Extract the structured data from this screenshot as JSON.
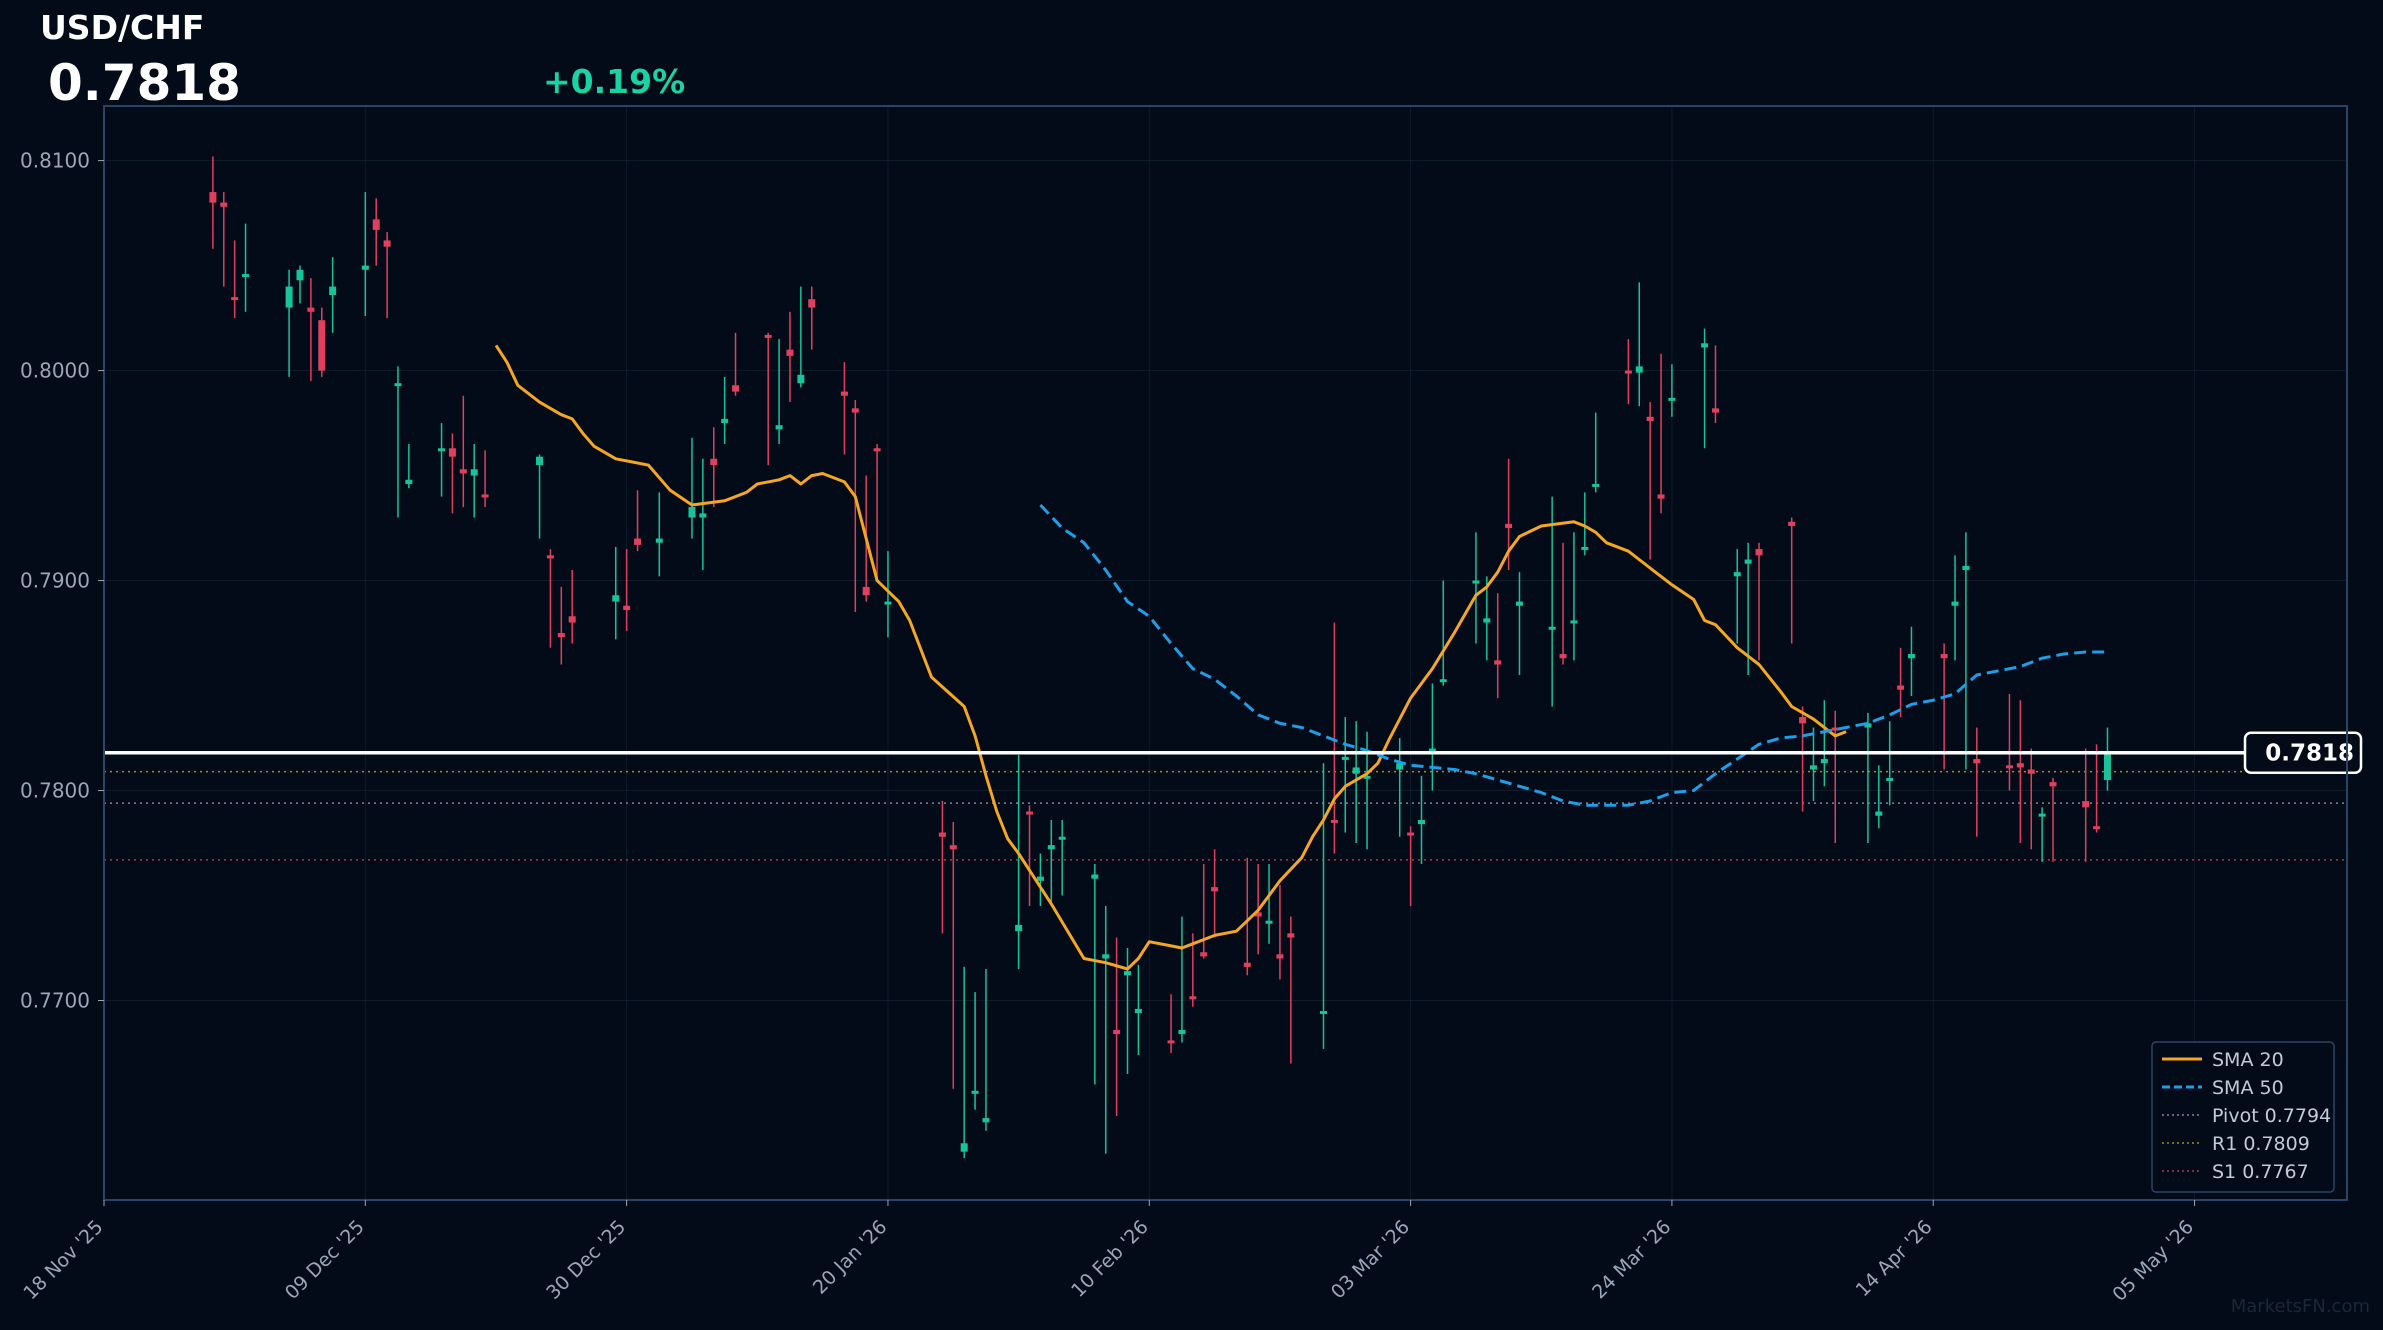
{
  "header": {
    "symbol": "USD/CHF",
    "price": "0.7818",
    "change": "+0.19%"
  },
  "watermark": "MarketsFN.com",
  "colors": {
    "background": "#020b17",
    "bull": "#19c39a",
    "bear": "#e0405e",
    "sma20": "#f5a623",
    "sma50": "#1e9ee8",
    "pivot": "#6f8aa8",
    "r1": "#a88a1e",
    "s1": "#b03a3a",
    "last_price": "#ffffff",
    "change_positive": "#19d3a2"
  },
  "chart_data": {
    "type": "candlestick",
    "ylim": [
      0.7605,
      0.8126
    ],
    "yticks": [
      "0.7700",
      "0.7800",
      "0.7900",
      "0.8000",
      "0.8100"
    ],
    "xlim": [
      0,
      103
    ],
    "xticks": [
      {
        "label": "18 Nov '25",
        "index": 0
      },
      {
        "label": "09 Dec '25",
        "index": 12
      },
      {
        "label": "30 Dec '25",
        "index": 24
      },
      {
        "label": "20 Jan '26",
        "index": 36
      },
      {
        "label": "10 Feb '26",
        "index": 48
      },
      {
        "label": "03 Mar '26",
        "index": 60
      },
      {
        "label": "24 Mar '26",
        "index": 72
      },
      {
        "label": "14 Apr '26",
        "index": 84
      },
      {
        "label": "05 May '26",
        "index": 96
      }
    ],
    "candles": [
      [
        5,
        0.8085,
        0.8102,
        0.8058,
        0.808
      ],
      [
        5.5,
        0.808,
        0.8085,
        0.804,
        0.8078
      ],
      [
        6,
        0.8035,
        0.8062,
        0.8025,
        0.8034
      ],
      [
        6.5,
        0.8045,
        0.807,
        0.8028,
        0.8046
      ],
      [
        8.5,
        0.803,
        0.8048,
        0.7997,
        0.804
      ],
      [
        9,
        0.8043,
        0.805,
        0.8032,
        0.8048
      ],
      [
        9.5,
        0.803,
        0.8044,
        0.7995,
        0.8028
      ],
      [
        10,
        0.8024,
        0.803,
        0.7997,
        0.8
      ],
      [
        10.5,
        0.8036,
        0.8054,
        0.8018,
        0.804
      ],
      [
        12,
        0.8048,
        0.8085,
        0.8026,
        0.805
      ],
      [
        12.5,
        0.8072,
        0.8082,
        0.805,
        0.8067
      ],
      [
        13,
        0.8062,
        0.8066,
        0.8025,
        0.8059
      ],
      [
        13.5,
        0.7994,
        0.8002,
        0.793,
        0.7994
      ],
      [
        14,
        0.7946,
        0.7965,
        0.7944,
        0.7948
      ],
      [
        15.5,
        0.7962,
        0.7975,
        0.794,
        0.7963
      ],
      [
        16,
        0.7963,
        0.797,
        0.7932,
        0.7959
      ],
      [
        16.5,
        0.7953,
        0.7988,
        0.7935,
        0.7951
      ],
      [
        17,
        0.795,
        0.7965,
        0.793,
        0.7953
      ],
      [
        17.5,
        0.7941,
        0.7962,
        0.7935,
        0.794
      ],
      [
        20,
        0.7955,
        0.796,
        0.792,
        0.7959
      ],
      [
        20.5,
        0.7912,
        0.7915,
        0.7868,
        0.7911
      ],
      [
        21,
        0.7875,
        0.7897,
        0.786,
        0.7873
      ],
      [
        21.5,
        0.7883,
        0.7905,
        0.787,
        0.788
      ],
      [
        23.5,
        0.789,
        0.7916,
        0.7872,
        0.7893
      ],
      [
        24,
        0.7888,
        0.7915,
        0.7876,
        0.7886
      ],
      [
        24.5,
        0.792,
        0.7943,
        0.7914,
        0.7917
      ],
      [
        25.5,
        0.7918,
        0.7942,
        0.7902,
        0.792
      ],
      [
        27,
        0.793,
        0.7968,
        0.792,
        0.7935
      ],
      [
        27.5,
        0.793,
        0.7958,
        0.7905,
        0.7932
      ],
      [
        28,
        0.7958,
        0.7973,
        0.7935,
        0.7955
      ],
      [
        28.5,
        0.7975,
        0.7997,
        0.7965,
        0.7977
      ],
      [
        29,
        0.7993,
        0.8018,
        0.7988,
        0.799
      ],
      [
        30.5,
        0.8017,
        0.8018,
        0.7955,
        0.8016
      ],
      [
        31,
        0.7972,
        0.8015,
        0.7965,
        0.7974
      ],
      [
        31.5,
        0.801,
        0.8028,
        0.7985,
        0.8007
      ],
      [
        32,
        0.7994,
        0.804,
        0.7992,
        0.7998
      ],
      [
        32.5,
        0.8034,
        0.804,
        0.801,
        0.803
      ],
      [
        34,
        0.799,
        0.8004,
        0.796,
        0.7988
      ],
      [
        34.5,
        0.7982,
        0.7986,
        0.7885,
        0.798
      ],
      [
        35,
        0.7897,
        0.795,
        0.789,
        0.7893
      ],
      [
        35.5,
        0.7963,
        0.7965,
        0.79,
        0.7962
      ],
      [
        36,
        0.789,
        0.7914,
        0.7873,
        0.789
      ],
      [
        38.5,
        0.778,
        0.7795,
        0.7732,
        0.7778
      ],
      [
        39,
        0.7774,
        0.7785,
        0.7658,
        0.7772
      ],
      [
        39.5,
        0.7628,
        0.7716,
        0.7625,
        0.7632
      ],
      [
        40,
        0.7656,
        0.7704,
        0.7648,
        0.7657
      ],
      [
        40.5,
        0.7642,
        0.7715,
        0.7638,
        0.7644
      ],
      [
        42,
        0.7733,
        0.7817,
        0.7715,
        0.7736
      ],
      [
        42.5,
        0.779,
        0.7793,
        0.7745,
        0.7789
      ],
      [
        43,
        0.7757,
        0.777,
        0.7745,
        0.7759
      ],
      [
        43.5,
        0.7772,
        0.7786,
        0.7745,
        0.7774
      ],
      [
        44,
        0.7777,
        0.7786,
        0.775,
        0.7778
      ],
      [
        45.5,
        0.7758,
        0.7765,
        0.766,
        0.776
      ],
      [
        46,
        0.772,
        0.7745,
        0.7627,
        0.7722
      ],
      [
        46.5,
        0.7686,
        0.773,
        0.7645,
        0.7684
      ],
      [
        47,
        0.7712,
        0.7725,
        0.7665,
        0.7714
      ],
      [
        47.5,
        0.7694,
        0.7717,
        0.7674,
        0.7696
      ],
      [
        49,
        0.7681,
        0.7703,
        0.7675,
        0.768
      ],
      [
        49.5,
        0.7684,
        0.774,
        0.768,
        0.7686
      ],
      [
        50,
        0.7702,
        0.7732,
        0.7697,
        0.7701
      ],
      [
        50.5,
        0.7723,
        0.7765,
        0.772,
        0.7721
      ],
      [
        51,
        0.7754,
        0.7772,
        0.773,
        0.7752
      ],
      [
        52.5,
        0.7718,
        0.7768,
        0.7712,
        0.7716
      ],
      [
        53,
        0.7742,
        0.7765,
        0.7722,
        0.774
      ],
      [
        53.5,
        0.7737,
        0.7765,
        0.7727,
        0.7738
      ],
      [
        54,
        0.7722,
        0.7755,
        0.771,
        0.772
      ],
      [
        54.5,
        0.7732,
        0.774,
        0.767,
        0.773
      ],
      [
        56,
        0.7694,
        0.7813,
        0.7677,
        0.7695
      ],
      [
        56.5,
        0.7786,
        0.788,
        0.777,
        0.7785
      ],
      [
        57,
        0.7815,
        0.7835,
        0.778,
        0.7816
      ],
      [
        57.5,
        0.7808,
        0.7833,
        0.7775,
        0.7811
      ],
      [
        58,
        0.7806,
        0.7828,
        0.7772,
        0.7807
      ],
      [
        59.5,
        0.781,
        0.7825,
        0.7778,
        0.7813
      ],
      [
        60,
        0.778,
        0.7783,
        0.7745,
        0.7779
      ],
      [
        60.5,
        0.7784,
        0.7807,
        0.7765,
        0.7786
      ],
      [
        61,
        0.7818,
        0.7851,
        0.78,
        0.782
      ],
      [
        61.5,
        0.7852,
        0.79,
        0.785,
        0.7853
      ],
      [
        63,
        0.7899,
        0.7923,
        0.787,
        0.79
      ],
      [
        63.5,
        0.788,
        0.7902,
        0.7862,
        0.7882
      ],
      [
        64,
        0.7862,
        0.7894,
        0.7844,
        0.786
      ],
      [
        64.5,
        0.7927,
        0.7958,
        0.7905,
        0.7925
      ],
      [
        65,
        0.7888,
        0.7904,
        0.7855,
        0.789
      ],
      [
        66.5,
        0.7877,
        0.794,
        0.784,
        0.7878
      ],
      [
        67,
        0.7865,
        0.7918,
        0.786,
        0.7863
      ],
      [
        67.5,
        0.788,
        0.7923,
        0.7862,
        0.7881
      ],
      [
        68,
        0.7915,
        0.7942,
        0.7912,
        0.7916
      ],
      [
        68.5,
        0.7945,
        0.798,
        0.7942,
        0.7946
      ],
      [
        70,
        0.8,
        0.8015,
        0.7984,
        0.7999
      ],
      [
        70.5,
        0.7999,
        0.8042,
        0.7983,
        0.8002
      ],
      [
        71,
        0.7978,
        0.7985,
        0.791,
        0.7976
      ],
      [
        71.5,
        0.7941,
        0.8008,
        0.7932,
        0.7939
      ],
      [
        72,
        0.7986,
        0.8003,
        0.7978,
        0.7987
      ],
      [
        73.5,
        0.8011,
        0.802,
        0.7963,
        0.8013
      ],
      [
        74,
        0.7982,
        0.8012,
        0.7975,
        0.798
      ],
      [
        75,
        0.7902,
        0.7915,
        0.787,
        0.7904
      ],
      [
        75.5,
        0.7908,
        0.7918,
        0.7855,
        0.791
      ],
      [
        76,
        0.7915,
        0.7918,
        0.7862,
        0.7912
      ],
      [
        77.5,
        0.7928,
        0.793,
        0.787,
        0.7926
      ],
      [
        78,
        0.7835,
        0.784,
        0.779,
        0.7832
      ],
      [
        78.5,
        0.781,
        0.783,
        0.7795,
        0.7812
      ],
      [
        79,
        0.7813,
        0.7843,
        0.7802,
        0.7815
      ],
      [
        79.5,
        0.783,
        0.7838,
        0.7775,
        0.7829
      ],
      [
        81,
        0.783,
        0.7837,
        0.7775,
        0.7832
      ],
      [
        81.5,
        0.7788,
        0.7812,
        0.7782,
        0.779
      ],
      [
        82,
        0.7805,
        0.7833,
        0.7793,
        0.7806
      ],
      [
        82.5,
        0.785,
        0.7868,
        0.7835,
        0.7848
      ],
      [
        83,
        0.7863,
        0.7878,
        0.7845,
        0.7865
      ],
      [
        84.5,
        0.7865,
        0.787,
        0.781,
        0.7863
      ],
      [
        85,
        0.7888,
        0.7912,
        0.7862,
        0.789
      ],
      [
        85.5,
        0.7905,
        0.7923,
        0.781,
        0.7907
      ],
      [
        86,
        0.7815,
        0.783,
        0.7778,
        0.7813
      ],
      [
        87.5,
        0.7812,
        0.7846,
        0.78,
        0.7811
      ],
      [
        88,
        0.7813,
        0.7843,
        0.7775,
        0.7811
      ],
      [
        88.5,
        0.781,
        0.782,
        0.7772,
        0.7808
      ],
      [
        89,
        0.7788,
        0.7792,
        0.7766,
        0.7789
      ],
      [
        89.5,
        0.7804,
        0.7806,
        0.7766,
        0.7802
      ],
      [
        91,
        0.7795,
        0.782,
        0.7766,
        0.7792
      ],
      [
        91.5,
        0.7783,
        0.7822,
        0.778,
        0.7782
      ],
      [
        92,
        0.7805,
        0.783,
        0.78,
        0.7818
      ]
    ],
    "sma20": [
      [
        18,
        0.8012
      ],
      [
        18.5,
        0.8004
      ],
      [
        19,
        0.7993
      ],
      [
        20,
        0.7985
      ],
      [
        21,
        0.7979
      ],
      [
        21.5,
        0.7977
      ],
      [
        22,
        0.797
      ],
      [
        22.5,
        0.7964
      ],
      [
        23.5,
        0.7958
      ],
      [
        25,
        0.7955
      ],
      [
        25.5,
        0.7949
      ],
      [
        26,
        0.7943
      ],
      [
        27,
        0.7936
      ],
      [
        28.5,
        0.7938
      ],
      [
        29.5,
        0.7942
      ],
      [
        30,
        0.7946
      ],
      [
        31,
        0.7948
      ],
      [
        31.5,
        0.795
      ],
      [
        32,
        0.7946
      ],
      [
        32.5,
        0.795
      ],
      [
        33,
        0.7951
      ],
      [
        34,
        0.7947
      ],
      [
        34.5,
        0.794
      ],
      [
        35.5,
        0.79
      ],
      [
        36.5,
        0.789
      ],
      [
        37,
        0.7881
      ],
      [
        38,
        0.7854
      ],
      [
        39.5,
        0.784
      ],
      [
        40,
        0.7826
      ],
      [
        40.5,
        0.7807
      ],
      [
        41,
        0.779
      ],
      [
        41.5,
        0.7777
      ],
      [
        42,
        0.777
      ],
      [
        42.5,
        0.7762
      ],
      [
        43.5,
        0.7746
      ],
      [
        45,
        0.772
      ],
      [
        46,
        0.7718
      ],
      [
        47,
        0.7715
      ],
      [
        47.5,
        0.772
      ],
      [
        48,
        0.7728
      ],
      [
        49,
        0.7726
      ],
      [
        49.5,
        0.7725
      ],
      [
        50,
        0.7727
      ],
      [
        50.5,
        0.7729
      ],
      [
        51,
        0.7731
      ],
      [
        52,
        0.7733
      ],
      [
        52.5,
        0.7738
      ],
      [
        53,
        0.7743
      ],
      [
        54,
        0.7757
      ],
      [
        55,
        0.7768
      ],
      [
        55.5,
        0.7778
      ],
      [
        56,
        0.7786
      ],
      [
        56.5,
        0.7796
      ],
      [
        57,
        0.7802
      ],
      [
        58,
        0.7808
      ],
      [
        58.5,
        0.7813
      ],
      [
        59,
        0.7824
      ],
      [
        59.5,
        0.7834
      ],
      [
        60,
        0.7844
      ],
      [
        61,
        0.7858
      ],
      [
        62,
        0.7875
      ],
      [
        63,
        0.7893
      ],
      [
        63.5,
        0.7897
      ],
      [
        64,
        0.7904
      ],
      [
        64.5,
        0.7914
      ],
      [
        65,
        0.7921
      ],
      [
        66,
        0.7926
      ],
      [
        67.5,
        0.7928
      ],
      [
        68,
        0.7926
      ],
      [
        68.5,
        0.7923
      ],
      [
        69,
        0.7918
      ],
      [
        70,
        0.7914
      ],
      [
        71,
        0.7906
      ],
      [
        72,
        0.7898
      ],
      [
        73,
        0.7891
      ],
      [
        73.5,
        0.7881
      ],
      [
        74,
        0.7879
      ],
      [
        75,
        0.7868
      ],
      [
        76,
        0.786
      ],
      [
        77,
        0.7847
      ],
      [
        77.5,
        0.784
      ],
      [
        78.5,
        0.7834
      ],
      [
        79.5,
        0.7826
      ],
      [
        80,
        0.7828
      ]
    ],
    "sma50": [
      [
        43,
        0.7936
      ],
      [
        44,
        0.7925
      ],
      [
        45,
        0.7918
      ],
      [
        46,
        0.7905
      ],
      [
        47,
        0.789
      ],
      [
        48,
        0.7883
      ],
      [
        49,
        0.787
      ],
      [
        50,
        0.7858
      ],
      [
        51,
        0.7853
      ],
      [
        52,
        0.7845
      ],
      [
        53,
        0.7836
      ],
      [
        54,
        0.7832
      ],
      [
        55,
        0.783
      ],
      [
        56,
        0.7826
      ],
      [
        57,
        0.7822
      ],
      [
        58,
        0.7819
      ],
      [
        59,
        0.7815
      ],
      [
        60,
        0.7812
      ],
      [
        61,
        0.7811
      ],
      [
        62,
        0.781
      ],
      [
        63,
        0.7808
      ],
      [
        64,
        0.7805
      ],
      [
        65,
        0.7802
      ],
      [
        66,
        0.7799
      ],
      [
        67,
        0.7795
      ],
      [
        68,
        0.7793
      ],
      [
        69,
        0.7793
      ],
      [
        70,
        0.7793
      ],
      [
        71,
        0.7795
      ],
      [
        72,
        0.7799
      ],
      [
        73,
        0.78
      ],
      [
        74,
        0.7808
      ],
      [
        75,
        0.7815
      ],
      [
        76,
        0.7822
      ],
      [
        77,
        0.7825
      ],
      [
        78,
        0.7826
      ],
      [
        79,
        0.7828
      ],
      [
        80,
        0.783
      ],
      [
        81,
        0.7832
      ],
      [
        82,
        0.7836
      ],
      [
        83,
        0.7841
      ],
      [
        84,
        0.7843
      ],
      [
        85,
        0.7846
      ],
      [
        86,
        0.7855
      ],
      [
        87,
        0.7857
      ],
      [
        88,
        0.7859
      ],
      [
        89,
        0.7863
      ],
      [
        90,
        0.7865
      ],
      [
        91,
        0.7866
      ],
      [
        92,
        0.7866
      ]
    ],
    "levels": [
      {
        "label": "Pivot 0.7794",
        "value": 0.7794,
        "style": "pivot"
      },
      {
        "label": "R1 0.7809",
        "value": 0.7809,
        "style": "r1"
      },
      {
        "label": "S1 0.7767",
        "value": 0.7767,
        "style": "s1"
      }
    ],
    "last_price": {
      "value": 0.7818,
      "label": "0.7818"
    },
    "legend": [
      {
        "label": "SMA 20",
        "style": "sma20"
      },
      {
        "label": "SMA 50",
        "style": "sma50"
      },
      {
        "label": "Pivot 0.7794",
        "style": "pivot"
      },
      {
        "label": "R1 0.7809",
        "style": "r1"
      },
      {
        "label": "S1 0.7767",
        "style": "s1"
      }
    ],
    "legend_position": "bottom-right",
    "grid": true
  }
}
